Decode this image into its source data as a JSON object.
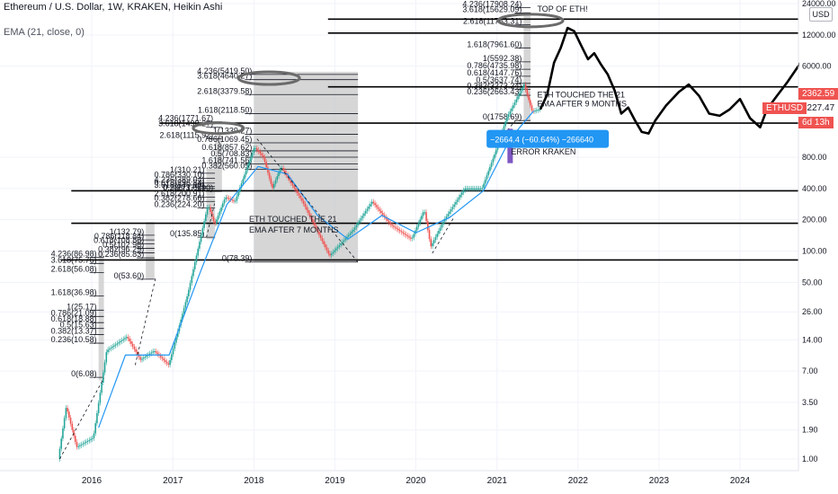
{
  "header": {
    "title": "Ethereum / U.S. Dollar, 1W, KRAKEN, Heikin Ashi",
    "indicator": "EMA (21, close, 0)",
    "currency_button": "USD"
  },
  "colors": {
    "up": "#26a69a",
    "down": "#ef5350",
    "ema": "#2196f3",
    "fib_box": "#c8c8c8",
    "price_tag": "#ef5350",
    "badge": "#2196f3",
    "error_bar": "#7e57c2"
  },
  "price_tags": {
    "last": "2362.59",
    "ema": "2227.47",
    "symbol": "ETHUSD",
    "countdown": "6d 13h"
  },
  "chart_data": {
    "type": "line",
    "scale": "log",
    "x_ticks": [
      "2016",
      "2017",
      "2018",
      "2019",
      "2020",
      "2021",
      "2022",
      "2023",
      "2024"
    ],
    "y_ticks": [
      "24000.00",
      "12000.00",
      "6000.00",
      "800.00",
      "400.00",
      "200.00",
      "100.00",
      "50.00",
      "26.00",
      "14.00",
      "7.00",
      "3.50",
      "1.90",
      "1.00"
    ],
    "price_path": [
      [
        "2015-08-10",
        1.0
      ],
      [
        "2015-09-15",
        3.2
      ],
      [
        "2015-11-01",
        1.3
      ],
      [
        "2016-01-15",
        1.6
      ],
      [
        "2016-03-15",
        11.0
      ],
      [
        "2016-06-15",
        15.0
      ],
      [
        "2016-08-15",
        9.0
      ],
      [
        "2016-10-15",
        11.0
      ],
      [
        "2016-12-20",
        8.0
      ],
      [
        "2017-03-15",
        38.0
      ],
      [
        "2017-06-15",
        280.0
      ],
      [
        "2017-07-15",
        180.0
      ],
      [
        "2017-09-01",
        330.0
      ],
      [
        "2017-10-15",
        300.0
      ],
      [
        "2018-01-10",
        1000.0
      ],
      [
        "2018-02-20",
        800.0
      ],
      [
        "2018-04-01",
        400.0
      ],
      [
        "2018-05-10",
        650.0
      ],
      [
        "2018-08-15",
        300.0
      ],
      [
        "2018-12-15",
        90.0
      ],
      [
        "2019-04-01",
        160.0
      ],
      [
        "2019-06-25",
        300.0
      ],
      [
        "2019-09-15",
        180.0
      ],
      [
        "2019-12-20",
        130.0
      ],
      [
        "2020-02-15",
        250.0
      ],
      [
        "2020-03-15",
        110.0
      ],
      [
        "2020-05-15",
        200.0
      ],
      [
        "2020-08-15",
        400.0
      ],
      [
        "2020-11-01",
        400.0
      ],
      [
        "2021-01-01",
        900.0
      ],
      [
        "2021-02-20",
        1900.0
      ],
      [
        "2021-05-10",
        4000.0
      ],
      [
        "2021-06-15",
        2200.0
      ],
      [
        "2021-07-15",
        2300.0
      ]
    ],
    "ema_path": [
      [
        "2016-02-01",
        2.0
      ],
      [
        "2016-06-01",
        10.0
      ],
      [
        "2016-12-15",
        10.0
      ],
      [
        "2017-05-01",
        60.0
      ],
      [
        "2017-09-01",
        280.0
      ],
      [
        "2018-01-20",
        650.0
      ],
      [
        "2018-06-01",
        550.0
      ],
      [
        "2018-10-15",
        220.0
      ],
      [
        "2019-03-01",
        130.0
      ],
      [
        "2019-08-01",
        220.0
      ],
      [
        "2020-01-01",
        150.0
      ],
      [
        "2020-06-01",
        210.0
      ],
      [
        "2020-11-01",
        380.0
      ],
      [
        "2021-03-01",
        1200.0
      ],
      [
        "2021-06-15",
        2227.47
      ]
    ],
    "projection": [
      [
        "2021-07-15",
        2300.0
      ],
      [
        "2021-08-15",
        3200.0
      ],
      [
        "2021-09-15",
        6500.0
      ],
      [
        "2021-10-15",
        9000.0
      ],
      [
        "2021-11-15",
        14000.0
      ],
      [
        "2021-12-15",
        13000.0
      ],
      [
        "2022-01-15",
        9500.0
      ],
      [
        "2022-02-15",
        7000.0
      ],
      [
        "2022-03-15",
        8000.0
      ],
      [
        "2022-04-15",
        6200.0
      ],
      [
        "2022-05-15",
        5000.0
      ],
      [
        "2022-06-15",
        3500.0
      ],
      [
        "2022-07-15",
        2100.0
      ],
      [
        "2022-08-15",
        2400.0
      ],
      [
        "2022-09-15",
        1800.0
      ],
      [
        "2022-10-15",
        1400.0
      ],
      [
        "2022-11-15",
        1350.0
      ],
      [
        "2022-12-15",
        1800.0
      ],
      [
        "2023-02-01",
        2500.0
      ],
      [
        "2023-04-01",
        3400.0
      ],
      [
        "2023-05-15",
        4000.0
      ],
      [
        "2023-07-01",
        3100.0
      ],
      [
        "2023-08-15",
        2100.0
      ],
      [
        "2023-10-01",
        2000.0
      ],
      [
        "2023-11-15",
        2300.0
      ],
      [
        "2024-01-01",
        2900.0
      ],
      [
        "2024-02-15",
        1900.0
      ],
      [
        "2024-04-01",
        1550.0
      ],
      [
        "2024-05-01",
        2300.0
      ],
      [
        "2024-06-15",
        3100.0
      ],
      [
        "2024-08-01",
        4200.0
      ],
      [
        "2024-09-15",
        5800.0
      ],
      [
        "2024-10-20",
        7500.0
      ]
    ],
    "horizontal_levels": [
      {
        "price": 17000.0,
        "from": "2018-12-01",
        "to": "2024-10-31"
      },
      {
        "price": 12500.0,
        "from": "2018-12-01",
        "to": "2024-10-31"
      },
      {
        "price": 3800.0,
        "from": "2018-12-01",
        "to": "2024-10-31"
      },
      {
        "price": 1700.0,
        "from": "2016-11-01",
        "to": "2024-10-31"
      },
      {
        "price": 380.0,
        "from": "2015-10-01",
        "to": "2024-10-31"
      },
      {
        "price": 185.0,
        "from": "2015-10-01",
        "to": "2024-10-31"
      },
      {
        "price": 82.0,
        "from": "2015-08-15",
        "to": "2024-10-31"
      }
    ],
    "fib_blocks": [
      {
        "from": "2016-02-01",
        "to": "2016-02-25",
        "top": 100.0,
        "bottom": 5.7,
        "labels": [
          {
            "text": "4.236(86.98)",
            "price": 87
          },
          {
            "text": "3.618(75.76)",
            "price": 76
          },
          {
            "text": "2.618(56.08)",
            "price": 62
          },
          {
            "text": "1.618(36.98)",
            "price": 37
          },
          {
            "text": "1(25.17)",
            "price": 27
          },
          {
            "text": "0.786(21.09)",
            "price": 23.5
          },
          {
            "text": "0.618(18.88)",
            "price": 20.5
          },
          {
            "text": "0.5(15.63)",
            "price": 18
          },
          {
            "text": "0.382(13.37)",
            "price": 15.7
          },
          {
            "text": "0.236(10.58)",
            "price": 13
          },
          {
            "text": "0(6.08)",
            "price": 6.1
          }
        ]
      },
      {
        "from": "2016-09-01",
        "to": "2016-10-10",
        "top": 190.0,
        "bottom": 53.6,
        "labels": [
          {
            "text": "1(132.79)",
            "price": 142
          },
          {
            "text": "0.786(118.84)",
            "price": 128
          },
          {
            "text": "0.618(108.88)",
            "price": 117
          },
          {
            "text": "0.5(102.98)",
            "price": 106
          },
          {
            "text": "0.382(96.29)",
            "price": 96
          },
          {
            "text": "0.236(85.83)",
            "price": 86
          },
          {
            "text": "0(53.60)",
            "price": 53.6
          }
        ]
      },
      {
        "from": "2017-06-01",
        "to": "2017-07-10",
        "top": 620.0,
        "bottom": 130.0,
        "labels": [
          {
            "text": "4.236(389.04)",
            "price": 450
          },
          {
            "text": "3.618(340.10)",
            "price": 400
          },
          {
            "text": "1(310.21)",
            "price": 560
          },
          {
            "text": "0.786(330.10)",
            "price": 500
          },
          {
            "text": "0.618(296.84)",
            "price": 420
          },
          {
            "text": "0.5(271.01)",
            "price": 380
          },
          {
            "text": "0.382(278.66)",
            "price": 300
          },
          {
            "text": "2.618(200.91)",
            "price": 330
          },
          {
            "text": "0.236(224.20)",
            "price": 260
          },
          {
            "text": "0(135.85)",
            "price": 135.85
          }
        ]
      },
      {
        "from": "2017-07-10",
        "to": "2017-08-10",
        "top": 1300.0,
        "bottom": 370.0,
        "labels": [
          {
            "text": "4.236(1771.67)",
            "price": 1750
          },
          {
            "text": "3.618(1490.27)",
            "price": 1550
          },
          {
            "text": "2.618(1115.92)",
            "price": 1200
          },
          {
            "text": "0.236(375.90)",
            "price": 375.9
          }
        ]
      },
      {
        "from": "2018-01-01",
        "to": "2019-04-15",
        "top": 5300.0,
        "bottom": 78.39,
        "labels": [
          {
            "text": "4.236(5419.50)",
            "price": 5000
          },
          {
            "text": "3.618(4640.27)",
            "price": 4450
          },
          {
            "text": "2.618(3379.58)",
            "price": 3200
          },
          {
            "text": "1.618(2118.50)",
            "price": 2100
          },
          {
            "text": "1(1339.27)",
            "price": 1330
          },
          {
            "text": "0.786(1069.45)",
            "price": 1100
          },
          {
            "text": "0.618(857.62)",
            "price": 920
          },
          {
            "text": "0.5(708.83)",
            "price": 800
          },
          {
            "text": "1.618(741.56)",
            "price": 690
          },
          {
            "text": "0.382(560.05)",
            "price": 610
          },
          {
            "text": "0(78.39)",
            "price": 78.39
          }
        ]
      },
      {
        "from": "2021-05-01",
        "to": "2021-06-01",
        "top": 20000.0,
        "bottom": 1758.69,
        "labels": [
          {
            "text": "4.236(17908.24)",
            "price": 22000
          },
          {
            "text": "3.618(15629.09)",
            "price": 19500
          },
          {
            "text": "2.618(11753.31)",
            "price": 15000
          },
          {
            "text": "1.618(7961.60)",
            "price": 9000
          },
          {
            "text": "1(5592.38)",
            "price": 6600
          },
          {
            "text": "0.786(4735.98)",
            "price": 5600
          },
          {
            "text": "0.618(4147.76)",
            "price": 4800
          },
          {
            "text": "0.5(3637.74)",
            "price": 4100
          },
          {
            "text": "0.382(3273.24)",
            "price": 3600
          },
          {
            "text": "0.236(2663.43)",
            "price": 3150
          },
          {
            "text": "0(1758.69)",
            "price": 1800
          }
        ]
      }
    ],
    "annotations": [
      {
        "text": "TOP OF ETH!",
        "date": "2021-07-01",
        "price": 20000
      },
      {
        "text": "ETH TOUCHED THE 21",
        "date": "2021-07-01",
        "price": 3000
      },
      {
        "text": "EMA AFTER 9 MONTHS",
        "date": "2021-07-01",
        "price": 2450
      },
      {
        "text": "ETH TOUCHED THE 21",
        "date": "2017-12-10",
        "price": 190
      },
      {
        "text": "EMA AFTER 7 MONTHS",
        "date": "2017-12-10",
        "price": 150
      },
      {
        "text": "ERROR KRAKEN",
        "date": "2021-03-05",
        "price": 850
      }
    ],
    "badge": {
      "text": "−2664.4 (−60.64%) −266640",
      "date": "2021-02-20",
      "price": 1200
    },
    "error_bar": {
      "date": "2021-03-01",
      "top": 1500,
      "bottom": 700
    }
  }
}
